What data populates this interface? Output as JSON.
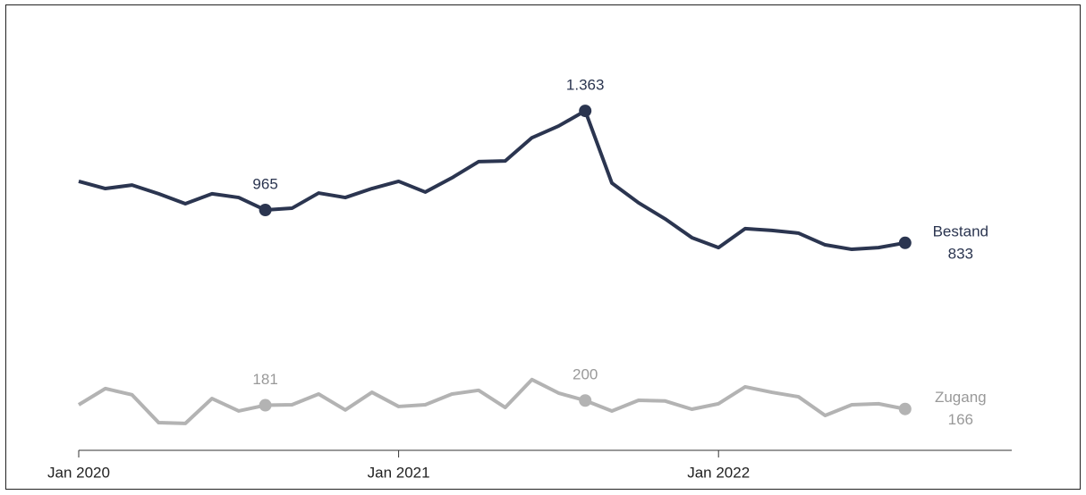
{
  "chart_data": {
    "type": "line",
    "x": [
      "2020-01",
      "2020-02",
      "2020-03",
      "2020-04",
      "2020-05",
      "2020-06",
      "2020-07",
      "2020-08",
      "2020-09",
      "2020-10",
      "2020-11",
      "2020-12",
      "2021-01",
      "2021-02",
      "2021-03",
      "2021-04",
      "2021-05",
      "2021-06",
      "2021-07",
      "2021-08",
      "2021-09",
      "2021-10",
      "2021-11",
      "2021-12",
      "2022-01",
      "2022-02",
      "2022-03",
      "2022-04",
      "2022-05",
      "2022-06",
      "2022-07",
      "2022-08"
    ],
    "xlim": [
      "2020-01",
      "2022-12"
    ],
    "xticks": [
      {
        "value": "2020-01",
        "label": "Jan 2020"
      },
      {
        "value": "2021-01",
        "label": "Jan 2021"
      },
      {
        "value": "2022-01",
        "label": "Jan 2022"
      }
    ],
    "ylim": [
      0,
      1600
    ],
    "series": [
      {
        "name": "Bestand",
        "color": "#2b3550",
        "values": [
          1080,
          1051,
          1065,
          1030,
          990,
          1030,
          1015,
          965,
          972,
          1033,
          1015,
          1051,
          1080,
          1037,
          1094,
          1159,
          1162,
          1255,
          1302,
          1363,
          1073,
          994,
          929,
          854,
          814,
          890,
          883,
          872,
          825,
          807,
          814,
          833
        ],
        "value_labels": [
          null,
          null,
          null,
          null,
          null,
          null,
          null,
          "965",
          null,
          null,
          null,
          null,
          null,
          null,
          null,
          null,
          null,
          null,
          null,
          "1.363",
          null,
          null,
          null,
          null,
          null,
          null,
          null,
          null,
          null,
          null,
          null,
          "833"
        ]
      },
      {
        "name": "Zugang",
        "color": "#b3b3b3",
        "values": [
          183,
          248,
          223,
          111,
          108,
          208,
          158,
          181,
          183,
          226,
          162,
          233,
          176,
          183,
          226,
          241,
          172,
          284,
          230,
          200,
          158,
          201,
          198,
          165,
          187,
          255,
          233,
          215,
          140,
          183,
          187,
          166
        ],
        "value_labels": [
          null,
          null,
          null,
          null,
          null,
          null,
          null,
          "181",
          null,
          null,
          null,
          null,
          null,
          null,
          null,
          null,
          null,
          null,
          null,
          "200",
          null,
          null,
          null,
          null,
          null,
          null,
          null,
          null,
          null,
          null,
          null,
          "166"
        ]
      }
    ]
  }
}
